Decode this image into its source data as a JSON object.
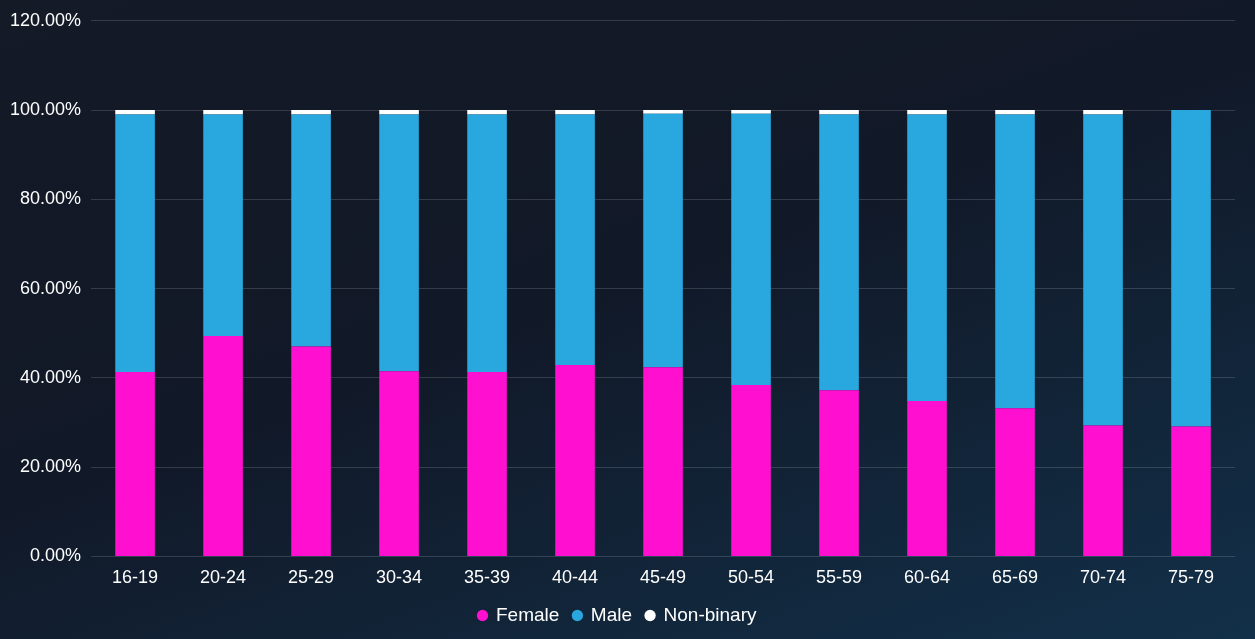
{
  "chart_data": {
    "type": "bar",
    "stacked": true,
    "categories": [
      "16-19",
      "20-24",
      "25-29",
      "30-34",
      "35-39",
      "40-44",
      "45-49",
      "50-54",
      "55-59",
      "60-64",
      "65-69",
      "70-74",
      "75-79"
    ],
    "series": [
      {
        "name": "Female",
        "color": "#ff0fcf",
        "values": [
          41.3,
          49.4,
          47.0,
          41.5,
          41.3,
          42.9,
          42.4,
          38.4,
          37.2,
          34.8,
          33.2,
          29.3,
          29.1
        ]
      },
      {
        "name": "Male",
        "color": "#29a8e0",
        "values": [
          57.7,
          49.6,
          52.0,
          57.5,
          57.7,
          56.1,
          56.8,
          60.8,
          61.8,
          64.2,
          65.8,
          69.7,
          70.9
        ]
      },
      {
        "name": "Non-binary",
        "color": "#ffffff",
        "values": [
          1.0,
          1.0,
          1.0,
          1.0,
          1.0,
          1.0,
          0.8,
          0.8,
          1.0,
          1.0,
          1.0,
          1.0,
          0
        ]
      }
    ],
    "ylim": [
      0,
      120
    ],
    "yticks": [
      {
        "value": 0,
        "label": "0.00%"
      },
      {
        "value": 20,
        "label": "20.00%"
      },
      {
        "value": 40,
        "label": "40.00%"
      },
      {
        "value": 60,
        "label": "60.00%"
      },
      {
        "value": 80,
        "label": "80.00%"
      },
      {
        "value": 100,
        "label": "100.00%"
      },
      {
        "value": 120,
        "label": "120.00%"
      }
    ],
    "grid": "y",
    "legend": "bottom",
    "marker": "circle"
  }
}
